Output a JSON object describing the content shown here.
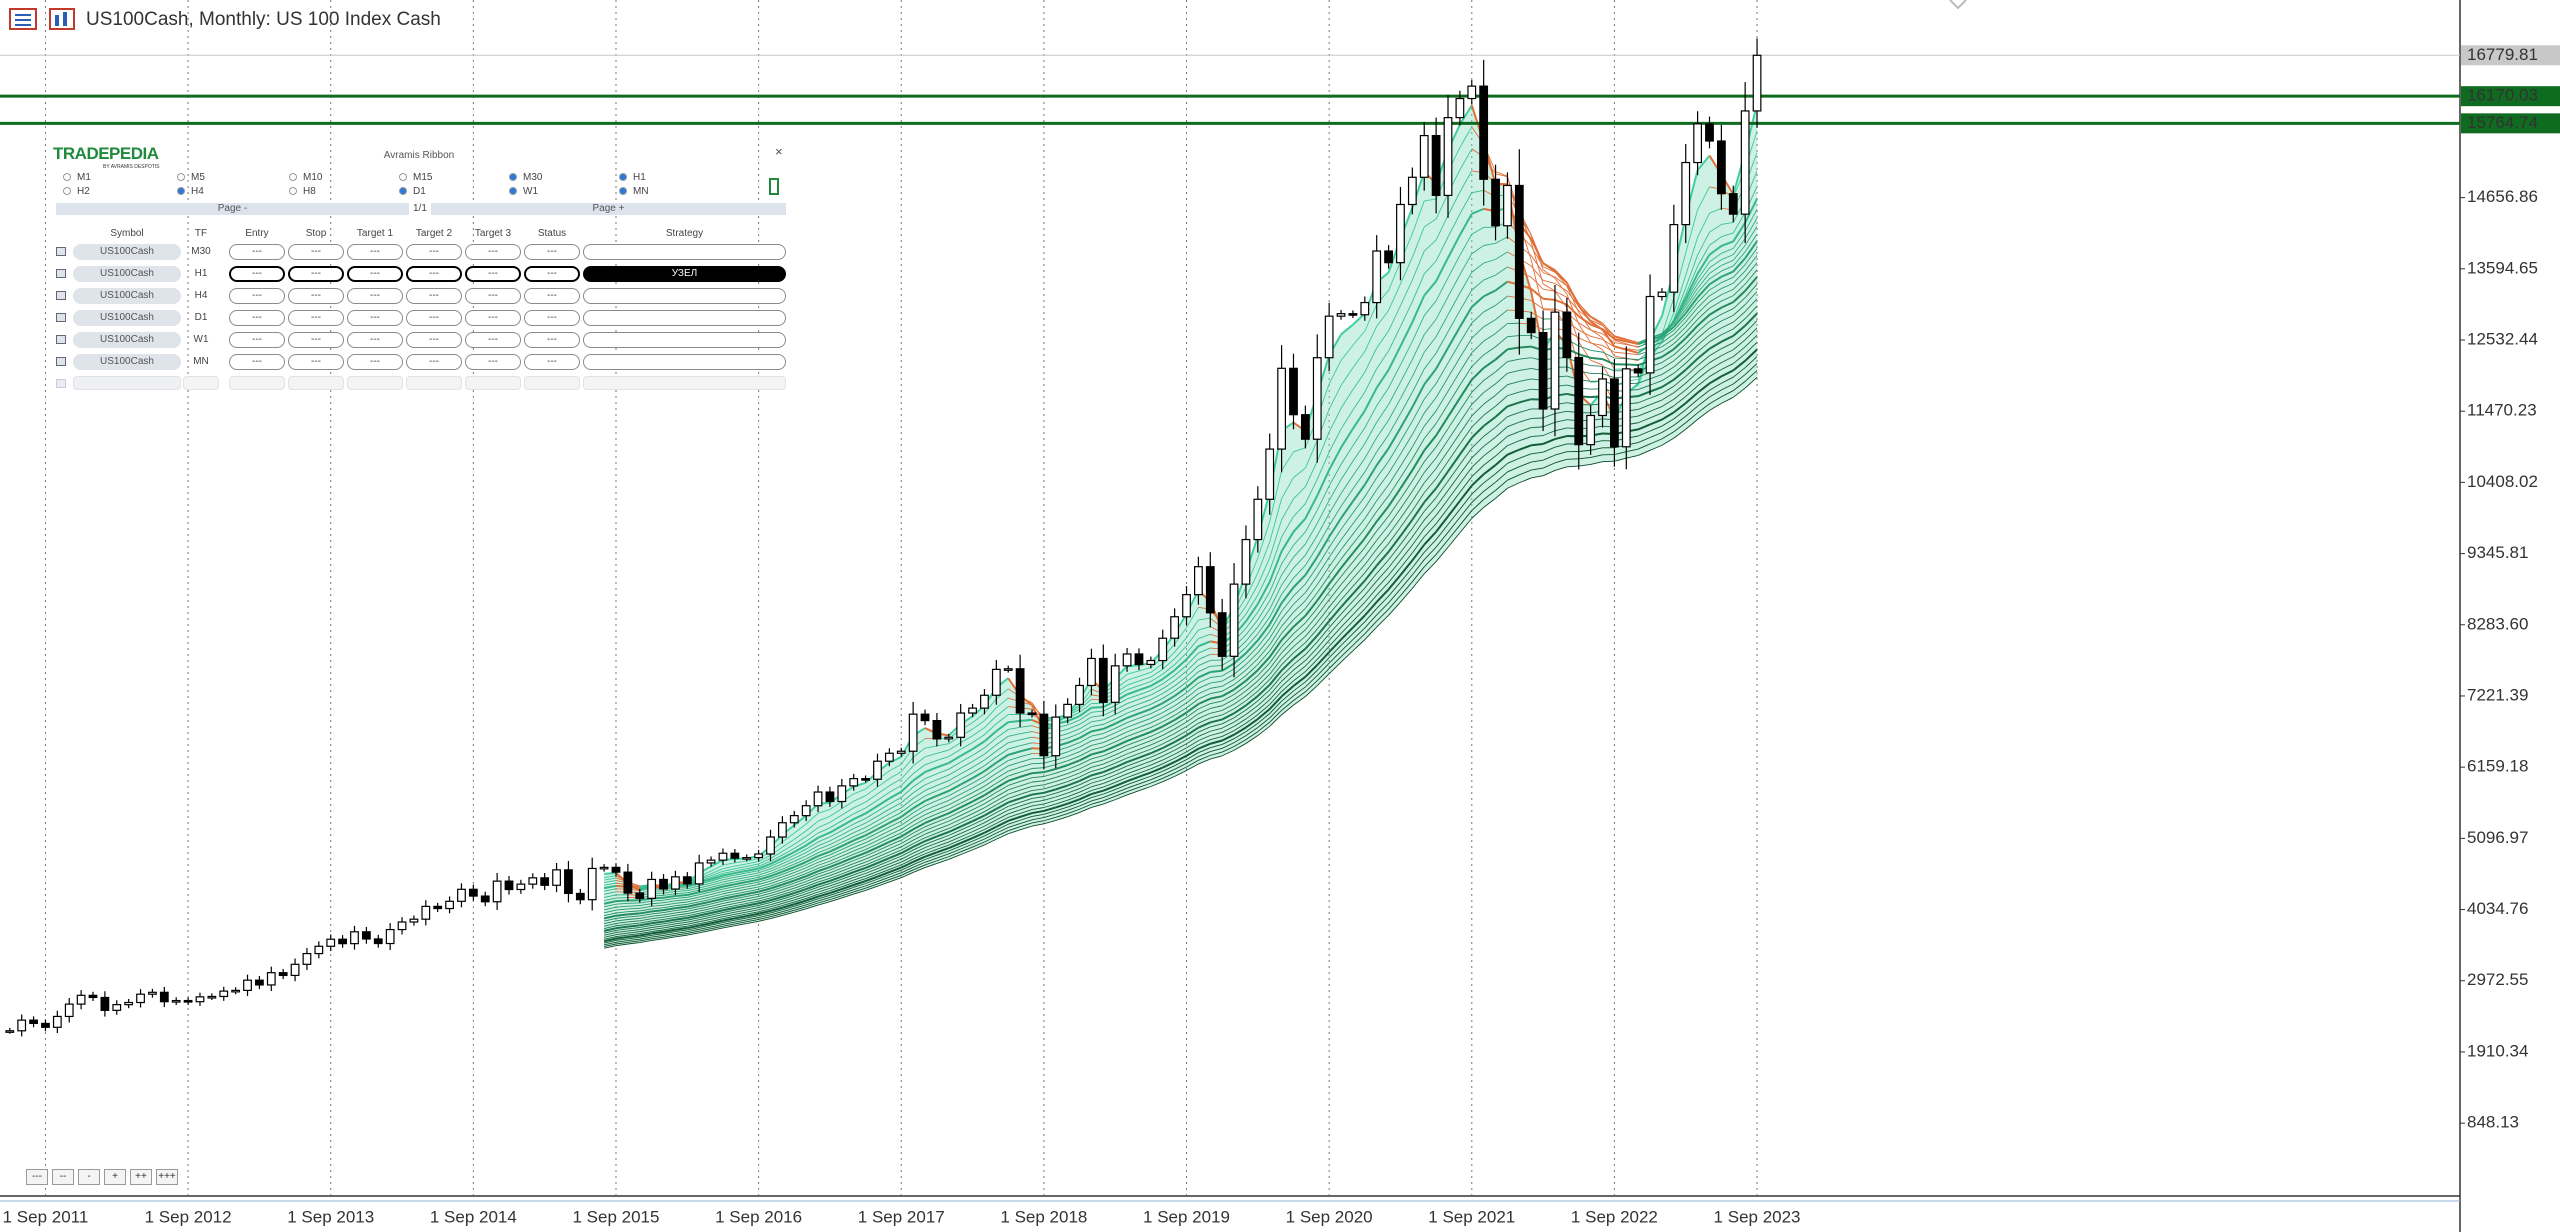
{
  "chart_data": {
    "type": "candlestick",
    "title": "US100Cash, Monthly:  US 100 Index Cash",
    "categories": [
      null,
      null,
      null,
      "1 Sep 2011",
      null,
      null,
      null,
      null,
      null,
      null,
      null,
      null,
      null,
      null,
      null,
      "1 Sep 2012",
      null,
      null,
      null,
      null,
      null,
      null,
      null,
      null,
      null,
      null,
      null,
      "1 Sep 2013",
      null,
      null,
      null,
      null,
      null,
      null,
      null,
      null,
      null,
      null,
      null,
      "1 Sep 2014",
      null,
      null,
      null,
      null,
      null,
      null,
      null,
      null,
      null,
      null,
      null,
      "1 Sep 2015",
      null,
      null,
      null,
      null,
      null,
      null,
      null,
      null,
      null,
      null,
      null,
      "1 Sep 2016",
      null,
      null,
      null,
      null,
      null,
      null,
      null,
      null,
      null,
      null,
      null,
      "1 Sep 2017",
      null,
      null,
      null,
      null,
      null,
      null,
      null,
      null,
      null,
      null,
      null,
      "1 Sep 2018",
      null,
      null,
      null,
      null,
      null,
      null,
      null,
      null,
      null,
      null,
      null,
      "1 Sep 2019",
      null,
      null,
      null,
      null,
      null,
      null,
      null,
      null,
      null,
      null,
      null,
      "1 Sep 2020",
      null,
      null,
      null,
      null,
      null,
      null,
      null,
      null,
      null,
      null,
      null,
      "1 Sep 2021",
      null,
      null,
      null,
      null,
      null,
      null,
      null,
      null,
      null,
      null,
      null,
      "1 Sep 2022",
      null,
      null,
      null,
      null,
      null,
      null,
      null,
      null,
      null,
      null,
      null,
      "1 Sep 2023"
    ],
    "values": [
      2226,
      2385,
      2336,
      2278,
      2440,
      2624,
      2755,
      2723,
      2531,
      2616,
      2648,
      2772,
      2800,
      2660,
      2677,
      2660,
      2732,
      2738,
      2818,
      2829,
      2981,
      2910,
      3093,
      3052,
      3218,
      3378,
      3487,
      3592,
      3526,
      3703,
      3596,
      3528,
      3736,
      3849,
      3891,
      4082,
      4050,
      4158,
      4337,
      4236,
      4151,
      4459,
      4334,
      4414,
      4508,
      4397,
      4627,
      4275,
      4182,
      4648,
      4664,
      4593,
      4280,
      4202,
      4484,
      4341,
      4523,
      4418,
      4730,
      4772,
      4875,
      4801,
      4810,
      4864,
      5117,
      5330,
      5436,
      5584,
      5788,
      5647,
      5880,
      5988,
      5979,
      6248,
      6367,
      6397,
      6950,
      6854,
      6581,
      6605,
      6967,
      7040,
      7232,
      7618,
      7627,
      6967,
      6949,
      6330,
      6906,
      7096,
      7378,
      7781,
      7127,
      7671,
      7848,
      7692,
      7750,
      8083,
      8403,
      8733,
      9150,
      8462,
      7813,
      8890,
      9555,
      10156,
      10905,
      12110,
      11418,
      11052,
      12268,
      12888,
      12925,
      12909,
      13091,
      13860,
      13686,
      14554,
      14960,
      15582,
      14690,
      15850,
      16135,
      16320,
      14930,
      14237,
      14838,
      12855,
      12643,
      11503,
      12948,
      12272,
      10971,
      11406,
      11951,
      10939,
      12102,
      12042,
      13181,
      13246,
      14254,
      15180,
      15757,
      15501,
      14715,
      14410,
      15950,
      16779.81
    ],
    "ylim": [
      -224,
      17605
    ],
    "yticks": [
      848.13,
      1910.34,
      2972.55,
      4034.76,
      5096.97,
      6159.18,
      7221.39,
      {
        "value": 8283.6,
        "label": "8283.60"
      },
      9345.81,
      10408.02,
      11470.23,
      12532.44,
      13594.65,
      14656.86
    ],
    "grid": true,
    "up_color": "#ffffff",
    "down_color": "#000000",
    "current_price": 16779.81,
    "levels": [
      {
        "value": 16170.03,
        "color": "#0f6b1f"
      },
      {
        "value": 15764.74,
        "color": "#0f6b1f"
      }
    ]
  },
  "panel": {
    "brand": "TRADEPEDIA",
    "brand_sub": "BY AVRAMIS DESPOTIS",
    "title": "Avramis Ribbon",
    "close": "×",
    "timeframes": [
      {
        "label": "M1",
        "checked": false
      },
      {
        "label": "M5",
        "checked": false
      },
      {
        "label": "M10",
        "checked": false
      },
      {
        "label": "M15",
        "checked": false
      },
      {
        "label": "M30",
        "checked": true
      },
      {
        "label": "H1",
        "checked": true
      },
      {
        "label": "H2",
        "checked": false
      },
      {
        "label": "H4",
        "checked": true
      },
      {
        "label": "H8",
        "checked": false
      },
      {
        "label": "D1",
        "checked": true
      },
      {
        "label": "W1",
        "checked": true
      },
      {
        "label": "MN",
        "checked": true
      }
    ],
    "page_prev": "Page -",
    "page": "1/1",
    "page_next": "Page +",
    "headers": [
      "Symbol",
      "TF",
      "Entry",
      "Stop",
      "Target 1",
      "Target 2",
      "Target 3",
      "Status",
      "Strategy"
    ],
    "rows": [
      {
        "symbol": "US100Cash",
        "tf": "M30",
        "entry": "---",
        "stop": "---",
        "target1": "---",
        "target2": "---",
        "target3": "---",
        "status": "---"
      },
      {
        "symbol": "US100Cash",
        "tf": "H1",
        "entry": "---",
        "stop": "---",
        "target1": "---",
        "target2": "---",
        "target3": "---",
        "status": "---",
        "strategy": "УЗЕЛ"
      },
      {
        "symbol": "US100Cash",
        "tf": "H4",
        "entry": "---",
        "stop": "---",
        "target1": "---",
        "target2": "---",
        "target3": "---",
        "status": "---"
      },
      {
        "symbol": "US100Cash",
        "tf": "D1",
        "entry": "---",
        "stop": "---",
        "target1": "---",
        "target2": "---",
        "target3": "---",
        "status": "---"
      },
      {
        "symbol": "US100Cash",
        "tf": "W1",
        "entry": "---",
        "stop": "---",
        "target1": "---",
        "target2": "---",
        "target3": "---",
        "status": "---"
      },
      {
        "symbol": "US100Cash",
        "tf": "MN",
        "entry": "---",
        "stop": "---",
        "target1": "---",
        "target2": "---",
        "target3": "---",
        "status": "---"
      }
    ]
  },
  "buttons": [
    "---",
    "--",
    "-",
    "+",
    "++",
    "+++"
  ]
}
